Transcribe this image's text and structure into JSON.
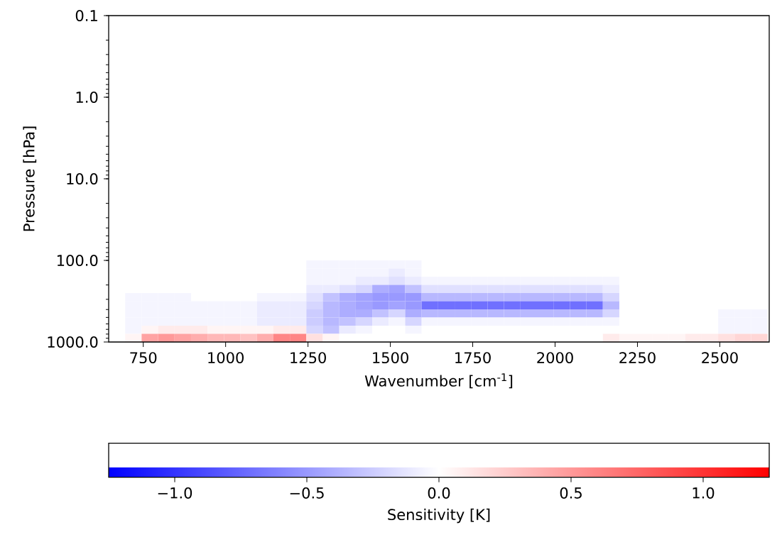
{
  "chart_data": {
    "type": "heatmap",
    "xlabel": "Wavenumber [cm$^{-1}$]",
    "ylabel": "Pressure [hPa]",
    "clabel": "Sensitivity [K]",
    "log": "y",
    "xlim": [
      645,
      2650
    ],
    "xticks": [
      750,
      1000,
      1250,
      1500,
      1750,
      2000,
      2250,
      2500
    ],
    "ylim": [
      1000,
      0.1
    ],
    "yticks": [
      {
        "value": 0.1,
        "label": "0.1"
      },
      {
        "value": 1,
        "label": "1.0"
      },
      {
        "value": 10,
        "label": "10.0"
      },
      {
        "value": 100,
        "label": "100.0"
      },
      {
        "value": 1000,
        "label": "1000.0"
      }
    ],
    "clim": [
      -1.25,
      1.25
    ],
    "cticks": [
      {
        "value": -1,
        "label": "−1.0"
      },
      {
        "value": -0.5,
        "label": "−0.5"
      },
      {
        "value": 0,
        "label": "0.0"
      },
      {
        "value": 0.5,
        "label": "0.5"
      },
      {
        "value": 1,
        "label": "1.0"
      }
    ],
    "x": [
      670,
      720,
      770,
      820,
      870,
      920,
      970,
      1020,
      1070,
      1120,
      1170,
      1220,
      1270,
      1320,
      1370,
      1420,
      1470,
      1520,
      1570,
      1620,
      1670,
      1720,
      1770,
      1820,
      1870,
      1920,
      1970,
      2020,
      2070,
      2120,
      2170,
      2220,
      2270,
      2320,
      2370,
      2420,
      2470,
      2520,
      2570,
      2620
    ],
    "y": [
      0.112,
      0.141,
      0.178,
      0.224,
      0.282,
      0.355,
      0.447,
      0.562,
      0.708,
      0.891,
      1.12,
      1.41,
      1.78,
      2.24,
      2.82,
      3.55,
      4.47,
      5.62,
      7.08,
      8.91,
      11.2,
      14.1,
      17.8,
      22.4,
      28.2,
      35.5,
      44.7,
      56.2,
      70.8,
      89.1,
      112,
      141,
      178,
      224,
      282,
      355,
      447,
      562,
      708,
      891
    ],
    "cells": [
      [
        0,
        0,
        0,
        0,
        0,
        0,
        0,
        0,
        0,
        0,
        0,
        0,
        0,
        0,
        0,
        0,
        0,
        0,
        0,
        0,
        0,
        0,
        0,
        0,
        0,
        0,
        0,
        0,
        0,
        0,
        0,
        0,
        0,
        0,
        0,
        0,
        0,
        0,
        0,
        0
      ],
      [
        0,
        0,
        0,
        0,
        0,
        0,
        0,
        0,
        0,
        0,
        0,
        0,
        0,
        0,
        0,
        0,
        0,
        0,
        0,
        0,
        0,
        0,
        0,
        0,
        0,
        0,
        0,
        0,
        0,
        0,
        0,
        0,
        0,
        0,
        0,
        0,
        0,
        0,
        0,
        0
      ],
      [
        0,
        0,
        0,
        0,
        0,
        0,
        0,
        0,
        0,
        0,
        0,
        0,
        0,
        0,
        0,
        0,
        0,
        0,
        0,
        0,
        0,
        0,
        0,
        0,
        0,
        0,
        0,
        0,
        0,
        0,
        0,
        0,
        0,
        0,
        0,
        0,
        0,
        0,
        0,
        0
      ],
      [
        0,
        0,
        0,
        0,
        0,
        0,
        0,
        0,
        0,
        0,
        0,
        0,
        0,
        0,
        0,
        0,
        0,
        0,
        0,
        0,
        0,
        0,
        0,
        0,
        0,
        0,
        0,
        0,
        0,
        0,
        0,
        0,
        0,
        0,
        0,
        0,
        0,
        0,
        0,
        0
      ],
      [
        0,
        0,
        0,
        0,
        0,
        0,
        0,
        0,
        0,
        0,
        0,
        0,
        0,
        0,
        0,
        0,
        0,
        0,
        0,
        0,
        0,
        0,
        0,
        0,
        0,
        0,
        0,
        0,
        0,
        0,
        0,
        0,
        0,
        0,
        0,
        0,
        0,
        0,
        0,
        0
      ],
      [
        0,
        0,
        0,
        0,
        0,
        0,
        0,
        0,
        0,
        0,
        0,
        0,
        0,
        0,
        0,
        0,
        0,
        0,
        0,
        0,
        0,
        0,
        0,
        0,
        0,
        0,
        0,
        0,
        0,
        0,
        0,
        0,
        0,
        0,
        0,
        0,
        0,
        0,
        0,
        0
      ],
      [
        0,
        0,
        0,
        0,
        0,
        0,
        0,
        0,
        0,
        0,
        0,
        0,
        0,
        0,
        0,
        0,
        0,
        0,
        0,
        0,
        0,
        0,
        0,
        0,
        0,
        0,
        0,
        0,
        0,
        0,
        0,
        0,
        0,
        0,
        0,
        0,
        0,
        0,
        0,
        0
      ],
      [
        0,
        0,
        0,
        0,
        0,
        0,
        0,
        0,
        0,
        0,
        0,
        0,
        0,
        0,
        0,
        0,
        0,
        0,
        0,
        0,
        0,
        0,
        0,
        0,
        0,
        0,
        0,
        0,
        0,
        0,
        0,
        0,
        0,
        0,
        0,
        0,
        0,
        0,
        0,
        0
      ],
      [
        0,
        0,
        0,
        0,
        0,
        0,
        0,
        0,
        0,
        0,
        0,
        0,
        0,
        0,
        0,
        0,
        0,
        0,
        0,
        0,
        0,
        0,
        0,
        0,
        0,
        0,
        0,
        0,
        0,
        0,
        0,
        0,
        0,
        0,
        0,
        0,
        0,
        0,
        0,
        0
      ],
      [
        0,
        0,
        0,
        0,
        0,
        0,
        0,
        0,
        0,
        0,
        0,
        0,
        0,
        0,
        0,
        0,
        0,
        0,
        0,
        0,
        0,
        0,
        0,
        0,
        0,
        0,
        0,
        0,
        0,
        0,
        0,
        0,
        0,
        0,
        0,
        0,
        0,
        0,
        0,
        0
      ],
      [
        0,
        0,
        0,
        0,
        0,
        0,
        0,
        0,
        0,
        0,
        0,
        0,
        0,
        0,
        0,
        0,
        0,
        0,
        0,
        0,
        0,
        0,
        0,
        0,
        0,
        0,
        0,
        0,
        0,
        0,
        0,
        0,
        0,
        0,
        0,
        0,
        0,
        0,
        0,
        0
      ],
      [
        0,
        0,
        0,
        0,
        0,
        0,
        0,
        0,
        0,
        0,
        0,
        0,
        0,
        0,
        0,
        0,
        0,
        0,
        0,
        0,
        0,
        0,
        0,
        0,
        0,
        0,
        0,
        0,
        0,
        0,
        0,
        0,
        0,
        0,
        0,
        0,
        0,
        0,
        0,
        0
      ],
      [
        0,
        0,
        0,
        0,
        0,
        0,
        0,
        0,
        0,
        0,
        0,
        0,
        0,
        0,
        0,
        0,
        0,
        0,
        0,
        0,
        0,
        0,
        0,
        0,
        0,
        0,
        0,
        0,
        0,
        0,
        0,
        0,
        0,
        0,
        0,
        0,
        0,
        0,
        0,
        0
      ],
      [
        0,
        0,
        0,
        0,
        0,
        0,
        0,
        0,
        0,
        0,
        0,
        0,
        0,
        0,
        0,
        0,
        0,
        0,
        0,
        0,
        0,
        0,
        0,
        0,
        0,
        0,
        0,
        0,
        0,
        0,
        0,
        0,
        0,
        0,
        0,
        0,
        0,
        0,
        0,
        0
      ],
      [
        0,
        0,
        0,
        0,
        0,
        0,
        0,
        0,
        0,
        0,
        0,
        0,
        0,
        0,
        0,
        0,
        0,
        0,
        0,
        0,
        0,
        0,
        0,
        0,
        0,
        0,
        0,
        0,
        0,
        0,
        0,
        0,
        0,
        0,
        0,
        0,
        0,
        0,
        0,
        0
      ],
      [
        0,
        0,
        0,
        0,
        0,
        0,
        0,
        0,
        0,
        0,
        0,
        0,
        0,
        0,
        0,
        0,
        0,
        0,
        0,
        0,
        0,
        0,
        0,
        0,
        0,
        0,
        0,
        0,
        0,
        0,
        0,
        0,
        0,
        0,
        0,
        0,
        0,
        0,
        0,
        0
      ],
      [
        0,
        0,
        0,
        0,
        0,
        0,
        0,
        0,
        0,
        0,
        0,
        0,
        0,
        0,
        0,
        0,
        0,
        0,
        0,
        0,
        0,
        0,
        0,
        0,
        0,
        0,
        0,
        0,
        0,
        0,
        0,
        0,
        0,
        0,
        0,
        0,
        0,
        0,
        0,
        0
      ],
      [
        0,
        0,
        0,
        0,
        0,
        0,
        0,
        0,
        0,
        0,
        0,
        0,
        0,
        0,
        0,
        0,
        0,
        0,
        0,
        0,
        0,
        0,
        0,
        0,
        0,
        0,
        0,
        0,
        0,
        0,
        0,
        0,
        0,
        0,
        0,
        0,
        0,
        0,
        0,
        0
      ],
      [
        0,
        0,
        0,
        0,
        0,
        0,
        0,
        0,
        0,
        0,
        0,
        0,
        0,
        0,
        0,
        0,
        0,
        0,
        0,
        0,
        0,
        0,
        0,
        0,
        0,
        0,
        0,
        0,
        0,
        0,
        0,
        0,
        0,
        0,
        0,
        0,
        0,
        0,
        0,
        0
      ],
      [
        0,
        0,
        0,
        0,
        0,
        0,
        0,
        0,
        0,
        0,
        0,
        0,
        0,
        0,
        0,
        0,
        0,
        0,
        0,
        0,
        0,
        0,
        0,
        0,
        0,
        0,
        0,
        0,
        0,
        0,
        0,
        0,
        0,
        0,
        0,
        0,
        0,
        0,
        0,
        0
      ],
      [
        0,
        0,
        0,
        0,
        0,
        0,
        0,
        0,
        0,
        0,
        0,
        0,
        0,
        0,
        0,
        0,
        0,
        0,
        0,
        0,
        0,
        0,
        0,
        0,
        0,
        0,
        0,
        0,
        0,
        0,
        0,
        0,
        0,
        0,
        0,
        0,
        0,
        0,
        0,
        0
      ],
      [
        0,
        0,
        0,
        0,
        0,
        0,
        0,
        0,
        0,
        0,
        0,
        0,
        0,
        0,
        0,
        0,
        0,
        0,
        0,
        0,
        0,
        0,
        0,
        0,
        0,
        0,
        0,
        0,
        0,
        0,
        0,
        0,
        0,
        0,
        0,
        0,
        0,
        0,
        0,
        0
      ],
      [
        0,
        0,
        0,
        0,
        0,
        0,
        0,
        0,
        0,
        0,
        0,
        0,
        0,
        0,
        0,
        0,
        0,
        0,
        0,
        0,
        0,
        0,
        0,
        0,
        0,
        0,
        0,
        0,
        0,
        0,
        0,
        0,
        0,
        0,
        0,
        0,
        0,
        0,
        0,
        0
      ],
      [
        0,
        0,
        0,
        0,
        0,
        0,
        0,
        0,
        0,
        0,
        0,
        0,
        0,
        0,
        0,
        0,
        0,
        0,
        0,
        0,
        0,
        0,
        0,
        0,
        0,
        0,
        0,
        0,
        0,
        0,
        0,
        0,
        0,
        0,
        0,
        0,
        0,
        0,
        0,
        0
      ],
      [
        0,
        0,
        0,
        0,
        0,
        0,
        0,
        0,
        0,
        0,
        0,
        0,
        0,
        0,
        0,
        0,
        0,
        0,
        0,
        0,
        0,
        0,
        0,
        0,
        0,
        0,
        0,
        0,
        0,
        0,
        0,
        0,
        0,
        0,
        0,
        0,
        0,
        0,
        0,
        0
      ],
      [
        0,
        0,
        0,
        0,
        0,
        0,
        0,
        0,
        0,
        0,
        0,
        0,
        0,
        0,
        0,
        0,
        0,
        0,
        0,
        0,
        0,
        0,
        0,
        0,
        0,
        0,
        0,
        0,
        0,
        0,
        0,
        0,
        0,
        0,
        0,
        0,
        0,
        0,
        0,
        0
      ],
      [
        0,
        0,
        0,
        0,
        0,
        0,
        0,
        0,
        0,
        0,
        0,
        0,
        0,
        0,
        0,
        0,
        0,
        0,
        0,
        0,
        0,
        0,
        0,
        0,
        0,
        0,
        0,
        0,
        0,
        0,
        0,
        0,
        0,
        0,
        0,
        0,
        0,
        0,
        0,
        0
      ],
      [
        0,
        0,
        0,
        0,
        0,
        0,
        0,
        0,
        0,
        0,
        0,
        0,
        0,
        0,
        0,
        0,
        0,
        0,
        0,
        0,
        0,
        0,
        0,
        0,
        0,
        0,
        0,
        0,
        0,
        0,
        0,
        0,
        0,
        0,
        0,
        0,
        0,
        0,
        0,
        0
      ],
      [
        0,
        0,
        0,
        0,
        0,
        0,
        0,
        0,
        0,
        0,
        0,
        0,
        0,
        0,
        0,
        0,
        0,
        0,
        0,
        0,
        0,
        0,
        0,
        0,
        0,
        0,
        0,
        0,
        0,
        0,
        0,
        0,
        0,
        0,
        0,
        0,
        0,
        0,
        0,
        0
      ],
      [
        0,
        0,
        0,
        0,
        0,
        0,
        0,
        0,
        0,
        0,
        0,
        0,
        0,
        0,
        0,
        0,
        0,
        0,
        0,
        0,
        0,
        0,
        0,
        0,
        0,
        0,
        0,
        0,
        0,
        0,
        0,
        0,
        0,
        0,
        0,
        0,
        0,
        0,
        0,
        0
      ],
      [
        0,
        0,
        0,
        0,
        0,
        0,
        0,
        0,
        0,
        0,
        0,
        0,
        -0.05,
        -0.05,
        -0.05,
        -0.05,
        -0.05,
        -0.05,
        -0.05,
        0,
        0,
        0,
        0,
        0,
        0,
        0,
        0,
        0,
        0,
        0,
        0,
        0,
        0,
        0,
        0,
        0,
        0,
        0,
        0,
        0
      ],
      [
        0,
        0,
        0,
        0,
        0,
        0,
        0,
        0,
        0,
        0,
        0,
        0,
        -0.05,
        -0.05,
        -0.05,
        -0.05,
        -0.05,
        -0.1,
        -0.05,
        0,
        0,
        0,
        0,
        0,
        0,
        0,
        0,
        0,
        0,
        0,
        0,
        0,
        0,
        0,
        0,
        0,
        0,
        0,
        0,
        0
      ],
      [
        0,
        0,
        0,
        0,
        0,
        0,
        0,
        0,
        0,
        0,
        0,
        0,
        -0.05,
        -0.05,
        -0.05,
        -0.1,
        -0.1,
        -0.15,
        -0.1,
        -0.05,
        -0.05,
        -0.05,
        -0.05,
        -0.05,
        -0.05,
        -0.05,
        -0.05,
        -0.05,
        -0.05,
        -0.05,
        -0.05,
        0,
        0,
        0,
        0,
        0,
        0,
        0,
        0,
        0
      ],
      [
        0,
        0,
        0,
        0,
        0,
        0,
        0,
        0,
        0,
        0,
        0,
        0,
        -0.1,
        -0.1,
        -0.15,
        -0.2,
        -0.4,
        -0.45,
        -0.3,
        -0.15,
        -0.15,
        -0.15,
        -0.15,
        -0.15,
        -0.15,
        -0.15,
        -0.15,
        -0.15,
        -0.15,
        -0.15,
        -0.1,
        0,
        0,
        0,
        0,
        0,
        0,
        0,
        0,
        0
      ],
      [
        0,
        -0.05,
        -0.05,
        -0.05,
        -0.05,
        0,
        0,
        0,
        0,
        -0.05,
        -0.05,
        -0.05,
        -0.15,
        -0.3,
        -0.4,
        -0.45,
        -0.5,
        -0.5,
        -0.5,
        -0.35,
        -0.35,
        -0.35,
        -0.35,
        -0.35,
        -0.35,
        -0.35,
        -0.35,
        -0.35,
        -0.35,
        -0.35,
        -0.2,
        0,
        0,
        0,
        0,
        0,
        0,
        0,
        0,
        0
      ],
      [
        0,
        -0.05,
        -0.05,
        -0.05,
        -0.05,
        -0.05,
        -0.05,
        -0.05,
        -0.05,
        -0.1,
        -0.1,
        -0.1,
        -0.2,
        -0.35,
        -0.4,
        -0.45,
        -0.5,
        -0.45,
        -0.5,
        -0.7,
        -0.7,
        -0.7,
        -0.7,
        -0.7,
        -0.7,
        -0.7,
        -0.7,
        -0.7,
        -0.7,
        -0.7,
        -0.35,
        0,
        0,
        0,
        0,
        0,
        0,
        0,
        0,
        0
      ],
      [
        0,
        -0.05,
        -0.05,
        -0.05,
        -0.05,
        -0.05,
        -0.05,
        -0.05,
        -0.05,
        -0.1,
        -0.1,
        -0.1,
        -0.25,
        -0.35,
        -0.4,
        -0.4,
        -0.3,
        -0.2,
        -0.4,
        -0.35,
        -0.35,
        -0.35,
        -0.35,
        -0.35,
        -0.35,
        -0.35,
        -0.35,
        -0.35,
        -0.35,
        -0.35,
        -0.2,
        0,
        0,
        0,
        0,
        0,
        0,
        -0.05,
        -0.05,
        -0.05
      ],
      [
        0,
        -0.05,
        -0.05,
        -0.05,
        -0.05,
        -0.05,
        -0.05,
        -0.05,
        -0.05,
        -0.1,
        -0.1,
        -0.1,
        -0.25,
        -0.35,
        -0.3,
        -0.2,
        -0.1,
        -0.05,
        -0.2,
        -0.05,
        -0.05,
        -0.05,
        -0.05,
        -0.05,
        -0.05,
        -0.05,
        -0.05,
        -0.05,
        -0.05,
        -0.05,
        -0.05,
        0,
        0,
        0,
        0,
        0,
        0,
        -0.05,
        -0.05,
        -0.05
      ],
      [
        0,
        -0.05,
        0.05,
        0.1,
        0.1,
        0.1,
        0.05,
        0.05,
        0.05,
        0.05,
        0.1,
        0.1,
        -0.2,
        -0.3,
        -0.1,
        -0.05,
        0,
        0,
        -0.05,
        0,
        0,
        0,
        0,
        0,
        0,
        0,
        0,
        0,
        0,
        0,
        0,
        0,
        0,
        0,
        0,
        0,
        0,
        -0.05,
        -0.05,
        -0.05
      ],
      [
        0,
        0.05,
        0.45,
        0.5,
        0.45,
        0.4,
        0.35,
        0.35,
        0.3,
        0.4,
        0.6,
        0.6,
        0.15,
        0.05,
        0,
        0,
        0,
        0,
        0,
        0,
        0,
        0,
        0,
        0,
        0,
        0,
        0,
        0,
        0,
        0,
        0.1,
        0.05,
        0.05,
        0.05,
        0.05,
        0.1,
        0.1,
        0.15,
        0.2,
        0.2
      ]
    ]
  }
}
